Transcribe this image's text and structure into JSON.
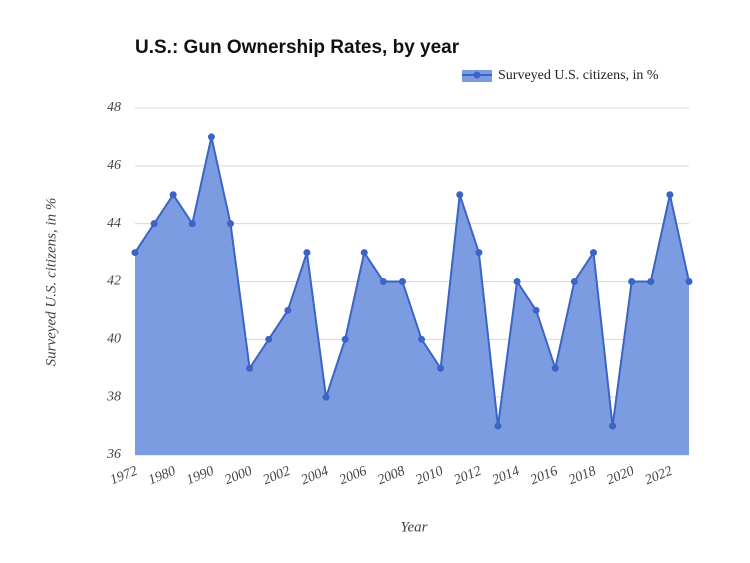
{
  "chart_data": {
    "type": "area",
    "title": "U.S.: Gun Ownership Rates, by year",
    "x_label": "Year",
    "y_label": "Surveyed U.S. citizens, in %",
    "categories": [
      "1972",
      null,
      "1980",
      null,
      "1990",
      null,
      "2000",
      null,
      "2002",
      null,
      "2004",
      null,
      "2006",
      null,
      "2008",
      null,
      "2010",
      null,
      "2012",
      null,
      "2014",
      null,
      "2016",
      null,
      "2018",
      null,
      "2020",
      null,
      "2022",
      null
    ],
    "series": [
      {
        "name": "Surveyed U.S. citizens, in %",
        "color": "#3b64c6",
        "fill": "#7b9ce0",
        "values": [
          43,
          44,
          45,
          44,
          47,
          44,
          39,
          40,
          41,
          43,
          38,
          40,
          43,
          42,
          42,
          40,
          39,
          45,
          43,
          37,
          42,
          41,
          39,
          42,
          43,
          37,
          42,
          42,
          45,
          42
        ]
      }
    ],
    "ylim": [
      36,
      48
    ],
    "yticks": [
      36,
      38,
      40,
      42,
      44,
      46,
      48
    ],
    "grid": true,
    "legend": "top-right"
  }
}
